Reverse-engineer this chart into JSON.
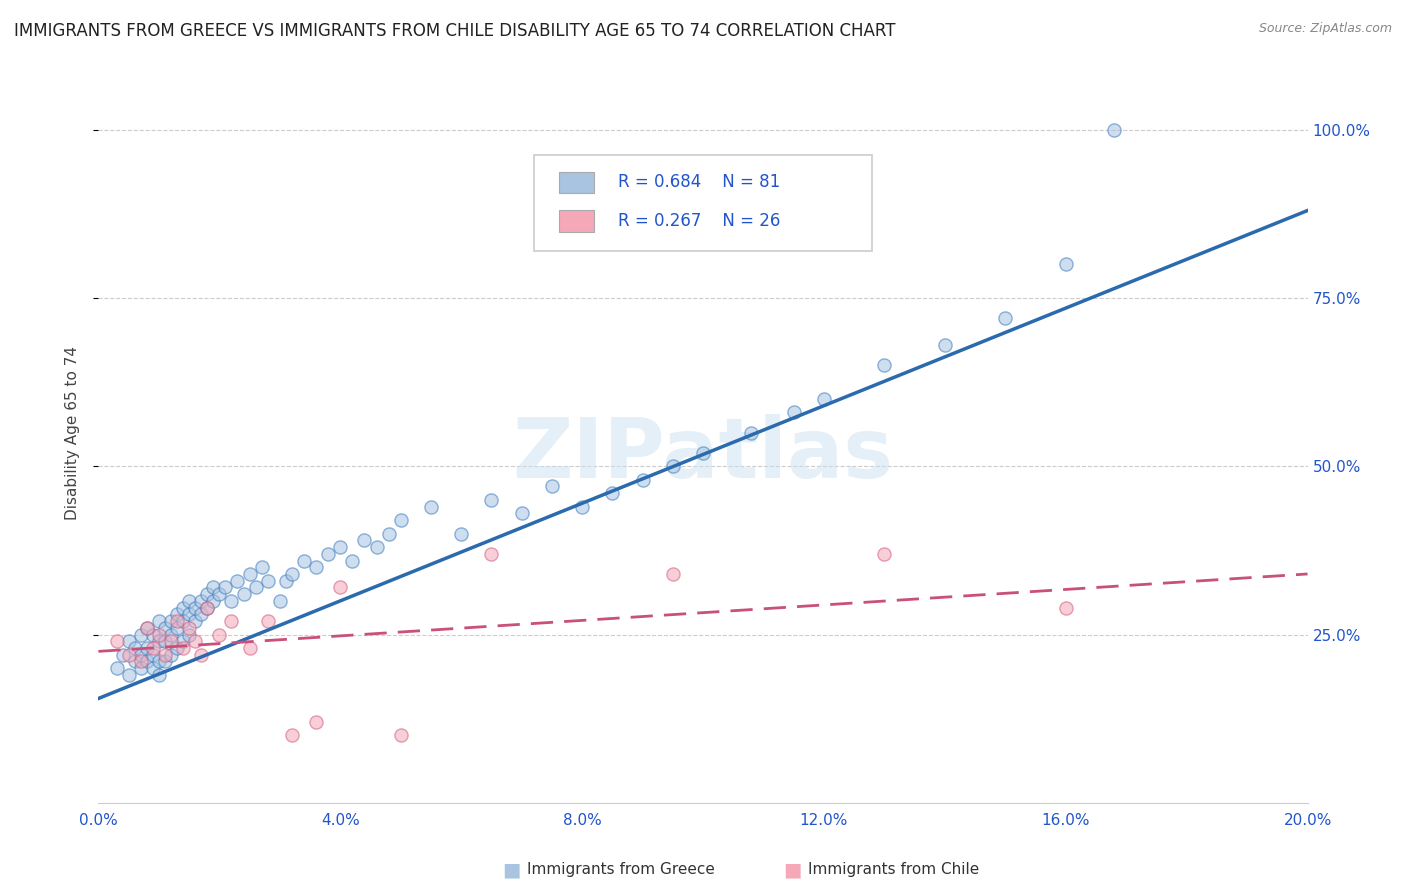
{
  "title": "IMMIGRANTS FROM GREECE VS IMMIGRANTS FROM CHILE DISABILITY AGE 65 TO 74 CORRELATION CHART",
  "source": "Source: ZipAtlas.com",
  "ylabel": "Disability Age 65 to 74",
  "xlim": [
    0.0,
    0.2
  ],
  "ylim": [
    0.0,
    1.1
  ],
  "xtick_positions": [
    0.0,
    0.04,
    0.08,
    0.12,
    0.16,
    0.2
  ],
  "xtick_labels": [
    "0.0%",
    "4.0%",
    "8.0%",
    "12.0%",
    "16.0%",
    "20.0%"
  ],
  "ytick_positions": [
    0.25,
    0.5,
    0.75,
    1.0
  ],
  "ytick_labels": [
    "25.0%",
    "50.0%",
    "75.0%",
    "100.0%"
  ],
  "greece_color": "#a8c4e0",
  "chile_color": "#f4a8b8",
  "greece_edge_color": "#3a7abf",
  "chile_edge_color": "#d45a7a",
  "greece_line_color": "#2a6aad",
  "chile_line_color": "#c8507a",
  "legend_R_greece": "R = 0.684",
  "legend_N_greece": "N = 81",
  "legend_R_chile": "R = 0.267",
  "legend_N_chile": "N = 26",
  "watermark": "ZIPatlas",
  "greece_scatter_x": [
    0.003,
    0.004,
    0.005,
    0.005,
    0.006,
    0.006,
    0.007,
    0.007,
    0.007,
    0.008,
    0.008,
    0.008,
    0.009,
    0.009,
    0.009,
    0.01,
    0.01,
    0.01,
    0.01,
    0.011,
    0.011,
    0.011,
    0.012,
    0.012,
    0.012,
    0.013,
    0.013,
    0.013,
    0.014,
    0.014,
    0.014,
    0.015,
    0.015,
    0.015,
    0.016,
    0.016,
    0.017,
    0.017,
    0.018,
    0.018,
    0.019,
    0.019,
    0.02,
    0.021,
    0.022,
    0.023,
    0.024,
    0.025,
    0.026,
    0.027,
    0.028,
    0.03,
    0.031,
    0.032,
    0.034,
    0.036,
    0.038,
    0.04,
    0.042,
    0.044,
    0.046,
    0.048,
    0.05,
    0.055,
    0.06,
    0.065,
    0.07,
    0.075,
    0.08,
    0.085,
    0.09,
    0.095,
    0.1,
    0.108,
    0.115,
    0.12,
    0.13,
    0.14,
    0.15,
    0.16,
    0.168
  ],
  "greece_scatter_y": [
    0.2,
    0.22,
    0.19,
    0.24,
    0.21,
    0.23,
    0.2,
    0.22,
    0.25,
    0.21,
    0.23,
    0.26,
    0.2,
    0.22,
    0.25,
    0.19,
    0.21,
    0.24,
    0.27,
    0.21,
    0.24,
    0.26,
    0.22,
    0.25,
    0.27,
    0.23,
    0.26,
    0.28,
    0.24,
    0.27,
    0.29,
    0.25,
    0.28,
    0.3,
    0.27,
    0.29,
    0.28,
    0.3,
    0.29,
    0.31,
    0.3,
    0.32,
    0.31,
    0.32,
    0.3,
    0.33,
    0.31,
    0.34,
    0.32,
    0.35,
    0.33,
    0.3,
    0.33,
    0.34,
    0.36,
    0.35,
    0.37,
    0.38,
    0.36,
    0.39,
    0.38,
    0.4,
    0.42,
    0.44,
    0.4,
    0.45,
    0.43,
    0.47,
    0.44,
    0.46,
    0.48,
    0.5,
    0.52,
    0.55,
    0.58,
    0.6,
    0.65,
    0.68,
    0.72,
    0.8,
    1.0
  ],
  "chile_scatter_x": [
    0.003,
    0.005,
    0.007,
    0.008,
    0.009,
    0.01,
    0.011,
    0.012,
    0.013,
    0.014,
    0.015,
    0.016,
    0.017,
    0.018,
    0.02,
    0.022,
    0.025,
    0.028,
    0.032,
    0.036,
    0.04,
    0.05,
    0.065,
    0.095,
    0.13,
    0.16
  ],
  "chile_scatter_y": [
    0.24,
    0.22,
    0.21,
    0.26,
    0.23,
    0.25,
    0.22,
    0.24,
    0.27,
    0.23,
    0.26,
    0.24,
    0.22,
    0.29,
    0.25,
    0.27,
    0.23,
    0.27,
    0.1,
    0.12,
    0.32,
    0.1,
    0.37,
    0.34,
    0.37,
    0.29
  ],
  "greece_line_x": [
    0.0,
    0.2
  ],
  "greece_line_y": [
    0.155,
    0.88
  ],
  "chile_line_x": [
    0.0,
    0.2
  ],
  "chile_line_y": [
    0.225,
    0.34
  ],
  "background_color": "#ffffff",
  "grid_color": "#cccccc",
  "title_fontsize": 12,
  "label_fontsize": 11,
  "tick_fontsize": 11,
  "scatter_size": 90,
  "scatter_alpha": 0.55,
  "text_color": "#2255cc"
}
